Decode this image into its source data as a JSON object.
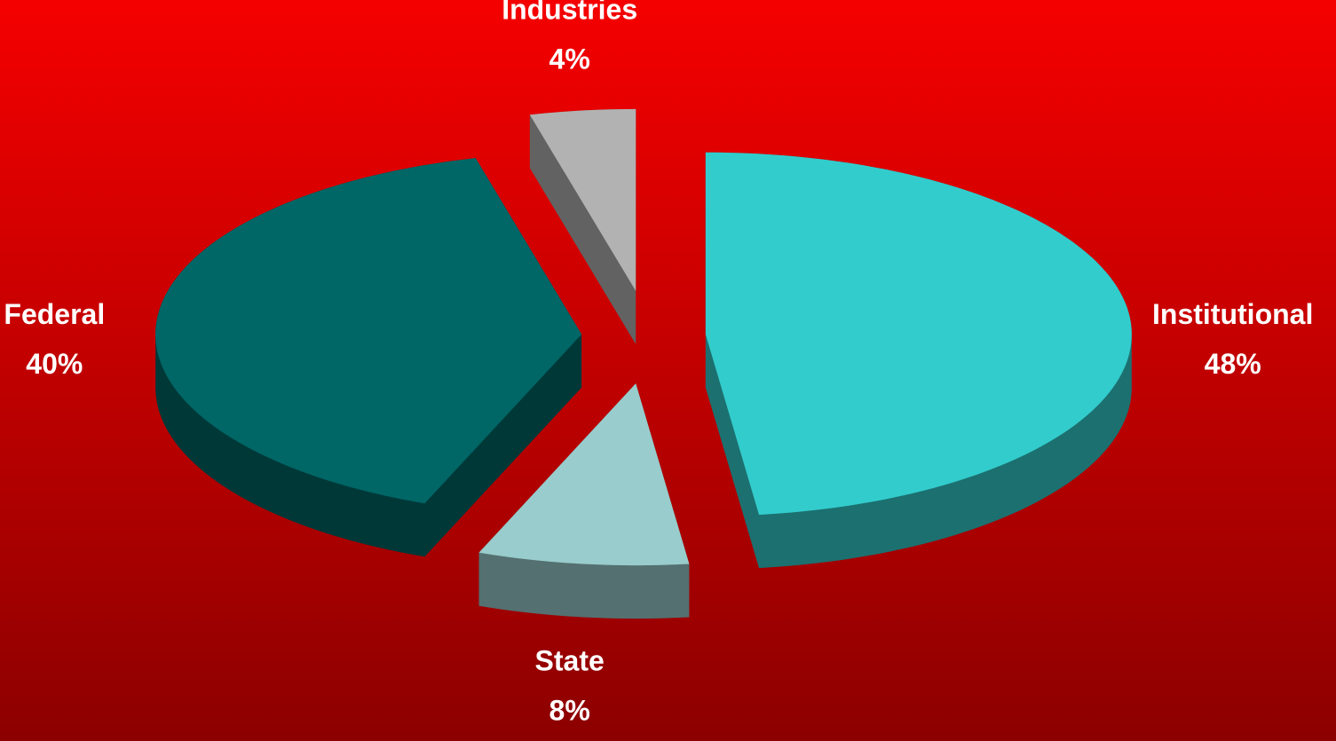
{
  "chart_data": {
    "type": "pie3d",
    "categories": [
      "Institutional",
      "State",
      "Federal",
      "Industries"
    ],
    "values": [
      48,
      8,
      40,
      4
    ],
    "value_labels": [
      "48%",
      "8%",
      "40%",
      "4%"
    ],
    "colors": [
      "#33cccc",
      "#99cccc",
      "#006666",
      "#b2b2b2"
    ]
  }
}
